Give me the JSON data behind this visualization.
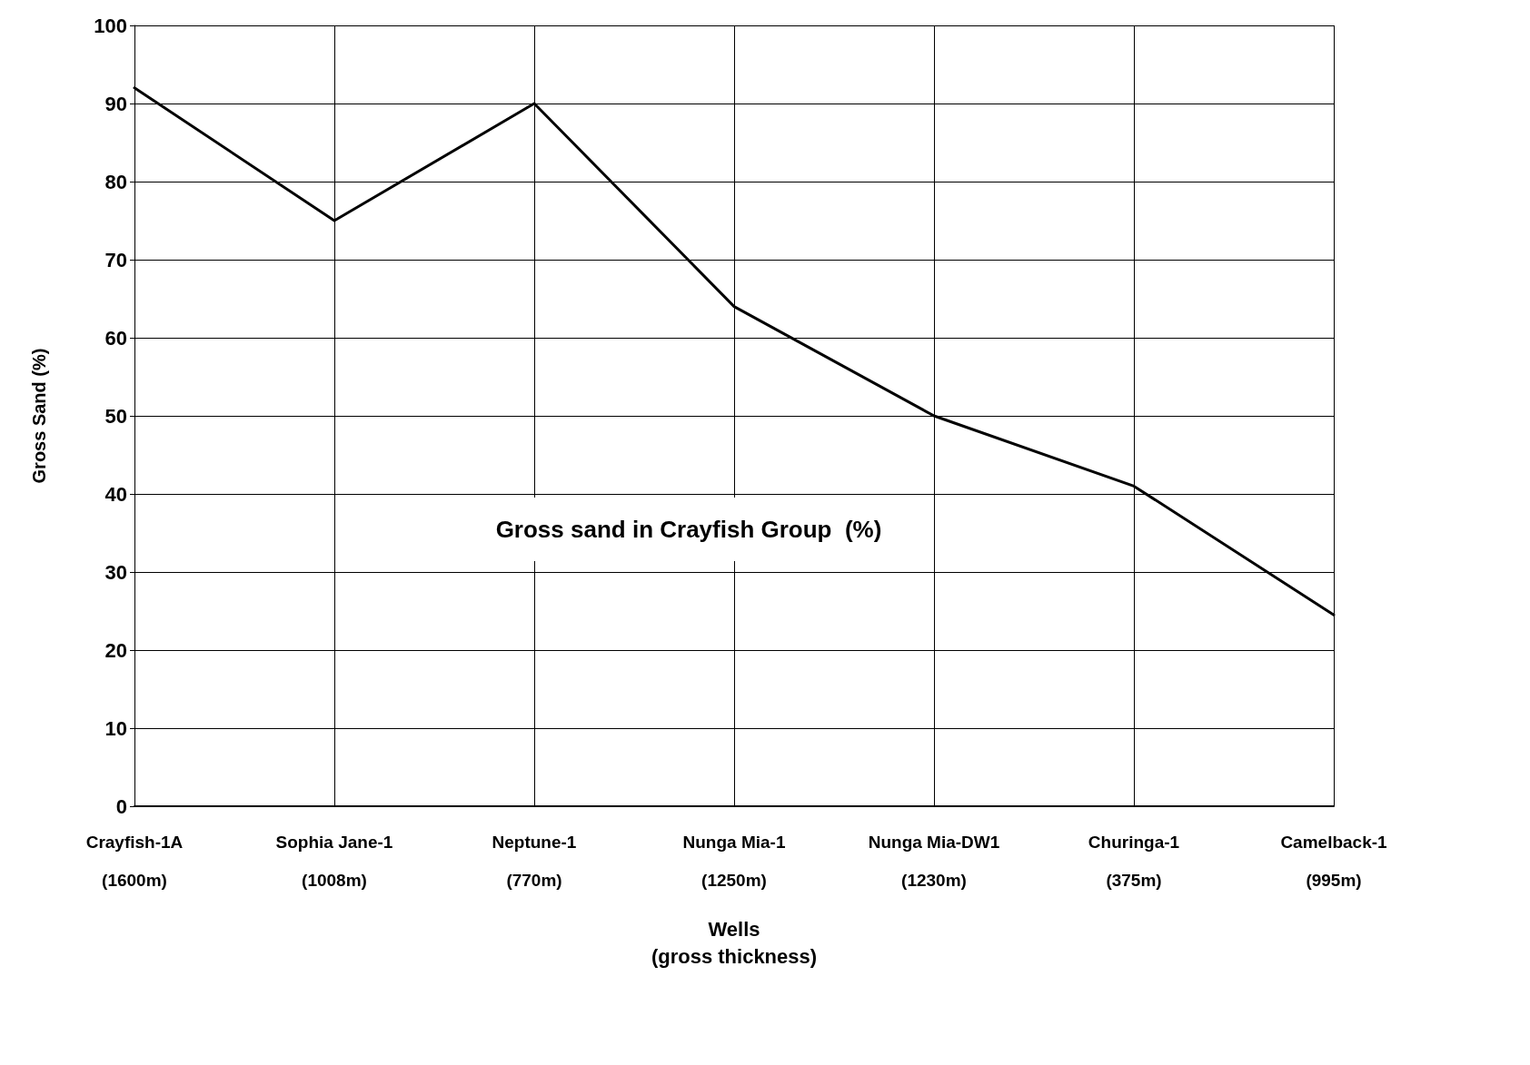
{
  "chart_data": {
    "type": "line",
    "xlabel": "Wells\n(gross thickness)",
    "ylabel": "Gross Sand (%)",
    "categories": [
      "Crayfish-1A\n(1600m)",
      "Sophia Jane-1\n(1008m)",
      "Neptune-1\n(770m)",
      "Nunga Mia-1\n(1250m)",
      "Nunga Mia-DW1\n(1230m)",
      "Churinga-1\n(375m)",
      "Camelback-1\n(995m)"
    ],
    "values": [
      92,
      75,
      90,
      64,
      50,
      41,
      24.5
    ],
    "color": "#000000",
    "ylim": [
      0,
      100
    ],
    "yticks": [
      0,
      10,
      20,
      30,
      40,
      50,
      60,
      70,
      80,
      90,
      100
    ],
    "grid": true,
    "marker": "none",
    "line_style": "solid",
    "annotations": [
      "Gross sand in Crayfish Group  (%)"
    ]
  }
}
